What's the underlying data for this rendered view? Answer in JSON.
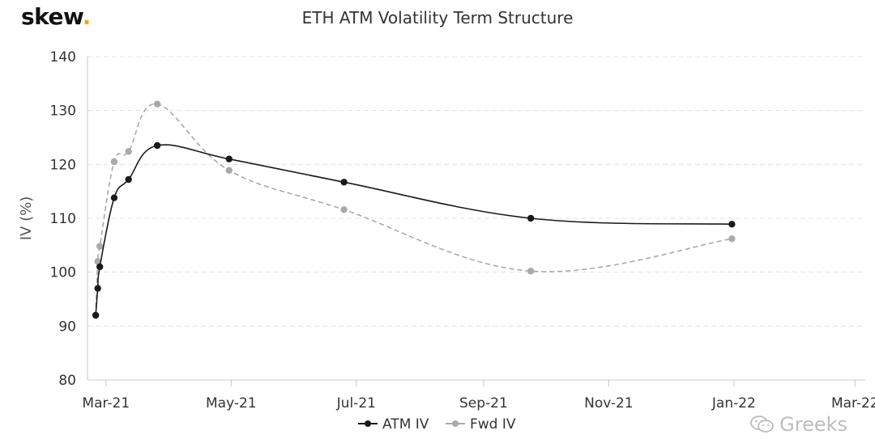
{
  "brand": {
    "name": "skew",
    "dot": "."
  },
  "watermark": "Greeks",
  "colors": {
    "atm": "#1a1a1a",
    "fwd": "#a9a9a9",
    "grid": "#e3e3e3",
    "axis": "#c8c8c8",
    "brand_dot": "#f2a900"
  },
  "chart_data": {
    "type": "line",
    "title": "ETH ATM Volatility Term Structure",
    "xlabel": "",
    "ylabel": "IV (%)",
    "ylim": [
      80,
      140
    ],
    "yticks": [
      80,
      90,
      100,
      110,
      120,
      130,
      140
    ],
    "xlim": [
      "2021-02-20",
      "2022-03-06"
    ],
    "xticks": [
      {
        "date": "2021-03-01",
        "label": "Mar-21"
      },
      {
        "date": "2021-05-01",
        "label": "May-21"
      },
      {
        "date": "2021-07-01",
        "label": "Jul-21"
      },
      {
        "date": "2021-09-01",
        "label": "Sep-21"
      },
      {
        "date": "2021-11-01",
        "label": "Nov-21"
      },
      {
        "date": "2022-01-01",
        "label": "Jan-22"
      },
      {
        "date": "2022-03-01",
        "label": "Mar-22"
      }
    ],
    "grid": true,
    "legend_position": "bottom",
    "series": [
      {
        "name": "ATM IV",
        "style": "solid",
        "points": [
          {
            "x": "2021-02-24",
            "y": 92.0
          },
          {
            "x": "2021-02-25",
            "y": 97.0
          },
          {
            "x": "2021-02-26",
            "y": 101.0
          },
          {
            "x": "2021-03-05",
            "y": 113.8
          },
          {
            "x": "2021-03-12",
            "y": 117.2
          },
          {
            "x": "2021-03-26",
            "y": 123.5
          },
          {
            "x": "2021-04-30",
            "y": 121.0
          },
          {
            "x": "2021-06-25",
            "y": 116.7
          },
          {
            "x": "2021-09-24",
            "y": 110.0
          },
          {
            "x": "2021-12-31",
            "y": 108.9
          }
        ]
      },
      {
        "name": "Fwd IV",
        "style": "dashed",
        "points": [
          {
            "x": "2021-02-24",
            "y": 92.0
          },
          {
            "x": "2021-02-25",
            "y": 102.0
          },
          {
            "x": "2021-02-26",
            "y": 104.8
          },
          {
            "x": "2021-03-05",
            "y": 120.5
          },
          {
            "x": "2021-03-12",
            "y": 122.4
          },
          {
            "x": "2021-03-26",
            "y": 131.2
          },
          {
            "x": "2021-04-30",
            "y": 118.9
          },
          {
            "x": "2021-06-25",
            "y": 111.6
          },
          {
            "x": "2021-09-24",
            "y": 100.2
          },
          {
            "x": "2021-12-31",
            "y": 106.2
          }
        ]
      }
    ]
  }
}
